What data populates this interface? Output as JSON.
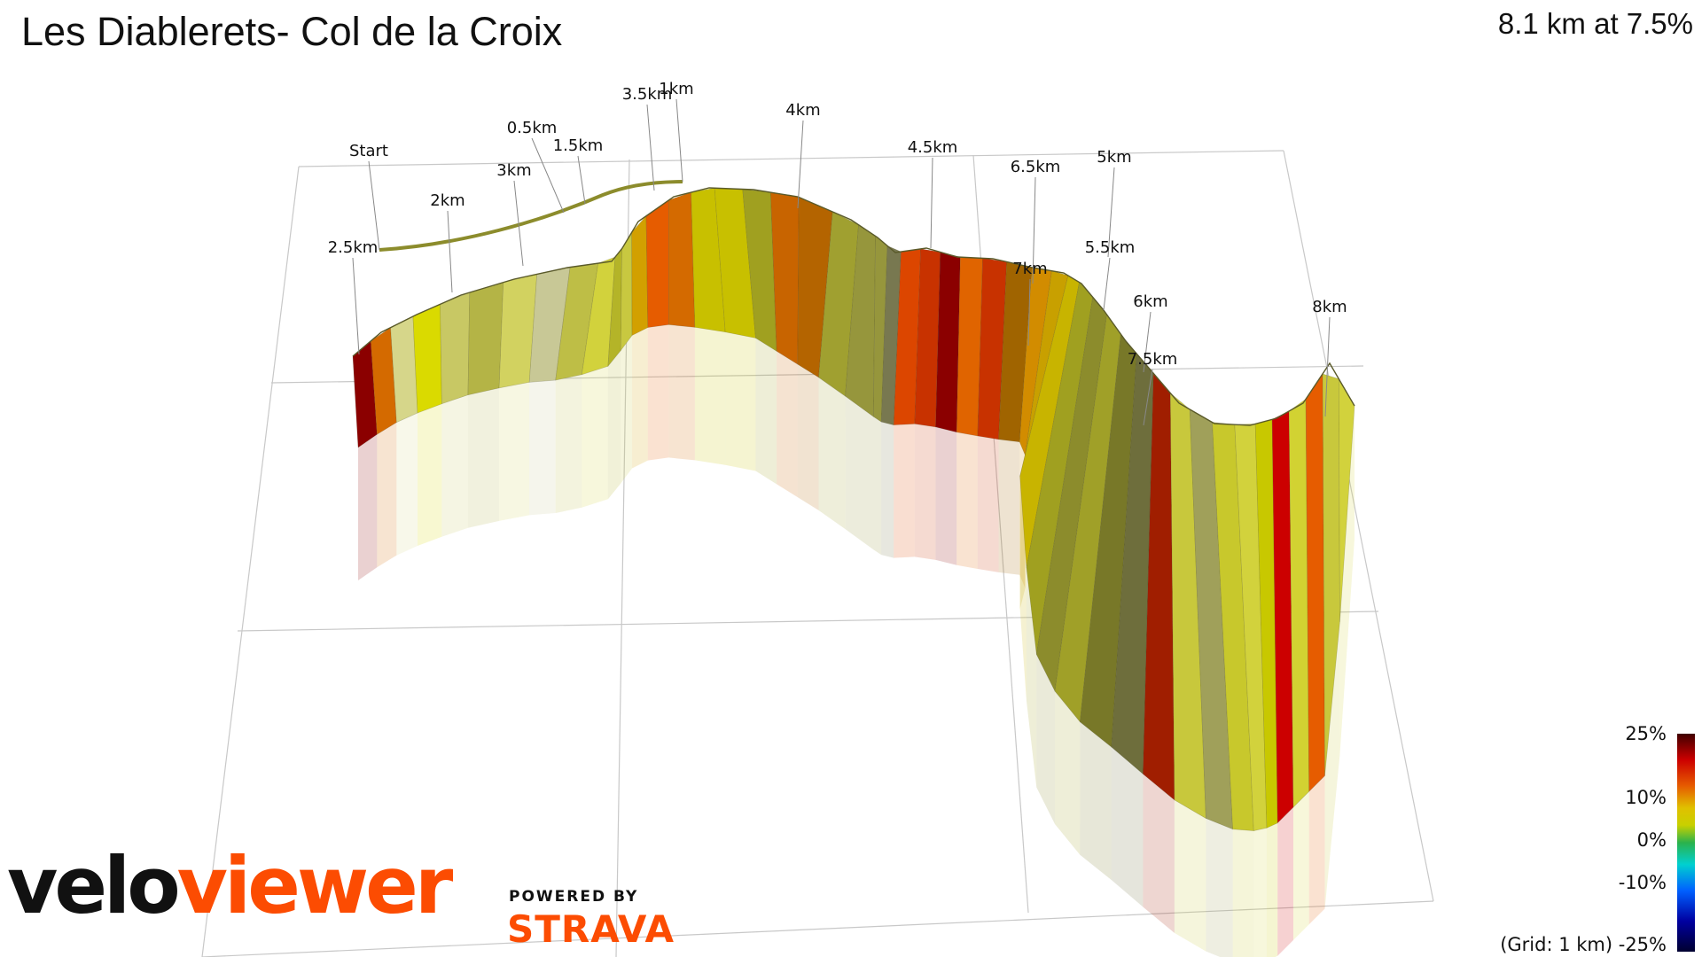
{
  "header": {
    "title": "Les Diablerets- Col de la Croix",
    "summary": "8.1 km at 7.5%"
  },
  "chart_data": {
    "type": "area",
    "title": "Les Diablerets- Col de la Croix",
    "subtitle": "8.1 km at 7.5%",
    "distance_km": 8.1,
    "avg_gradient_pct": 7.5,
    "grid_note": "(Grid: 1 km)",
    "distance_markers": [
      "Start",
      "0.5km",
      "1km",
      "1.5km",
      "2km",
      "2.5km",
      "3km",
      "3.5km",
      "4km",
      "4.5km",
      "5km",
      "5.5km",
      "6km",
      "6.5km",
      "7km",
      "7.5km",
      "8km"
    ],
    "gradient_scale": {
      "labels": [
        "25%",
        "10%",
        "0%",
        "-10%",
        "-25%"
      ],
      "values": [
        25,
        10,
        0,
        -10,
        -25
      ],
      "colors": [
        "#5a0000",
        "#cc0000",
        "#e65c00",
        "#e0c000",
        "#c8d000",
        "#2bb24c",
        "#00d0d0",
        "#0060ff",
        "#0000a0",
        "#000040"
      ]
    },
    "segment_colors": [
      "#8b0000",
      "#d46a00",
      "#d6d68a",
      "#dada00",
      "#c8c864",
      "#b4b446",
      "#d2d260",
      "#c8c896",
      "#bebe46",
      "#d2d23c",
      "#b4b428",
      "#c8c840",
      "#d2a000",
      "#e65c00",
      "#d46a00",
      "#c8c000",
      "#c8c000",
      "#a0a020",
      "#c86400",
      "#b46400",
      "#a0a030",
      "#96963c",
      "#96963c",
      "#787850",
      "#dc4600",
      "#c83200",
      "#8b0000",
      "#e06400",
      "#c83200",
      "#a06400",
      "#d28c00",
      "#c8a000",
      "#c8b400",
      "#a0a020",
      "#8c8c2c",
      "#a0a028",
      "#787828",
      "#6e6e3c",
      "#a01e00",
      "#c8c83c",
      "#a0a05a",
      "#c8c82c",
      "#d2d23c",
      "#c8c800",
      "#cc0000",
      "#d2d232",
      "#e65c00",
      "#c8c83c",
      "#d2d23c"
    ]
  },
  "legend": {
    "l25": "25%",
    "l10": "10%",
    "l0": "0%",
    "lm10": "-10%",
    "grid_and_min": "(Grid: 1 km) -25%"
  },
  "branding": {
    "velo_a": "velo",
    "velo_b": "viewer",
    "powered": "POWERED BY",
    "strava": "STRAVA"
  }
}
